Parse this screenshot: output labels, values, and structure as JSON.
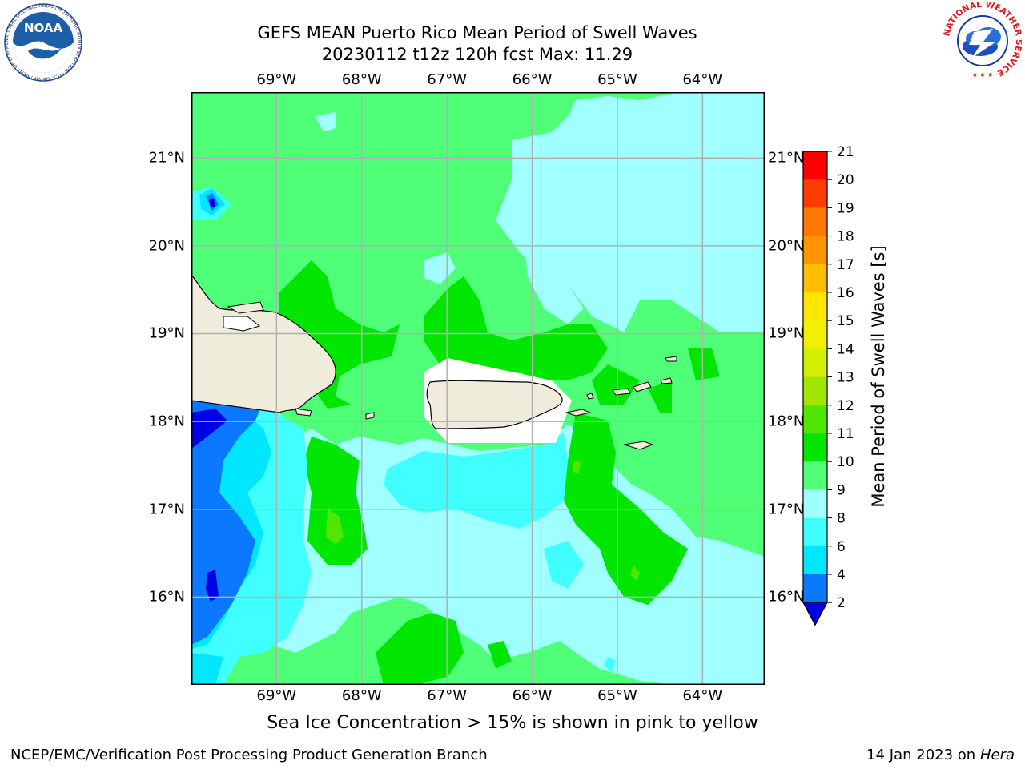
{
  "header": {
    "title_line1": "GEFS MEAN Puerto Rico Mean Period of Swell Waves",
    "title_line2": "20230112 t12z 120h fcst   Max: 11.29"
  },
  "logos": {
    "left": "NOAA",
    "left_ring": "NATIONAL OCEANIC AND ATMOSPHERIC ADMINISTRATION · U.S. DEPARTMENT OF COMMERCE",
    "right_ring": "NATIONAL WEATHER SERVICE"
  },
  "map": {
    "lon_labels": [
      "69°W",
      "68°W",
      "67°W",
      "66°W",
      "65°W",
      "64°W"
    ],
    "lat_labels": [
      "21°N",
      "20°N",
      "19°N",
      "18°N",
      "17°N",
      "16°N"
    ],
    "lon_values": [
      -69,
      -68,
      -67,
      -66,
      -65,
      -64
    ],
    "lat_values": [
      21,
      20,
      19,
      18,
      17,
      16
    ],
    "extent": {
      "lon": [
        -70,
        -63.27
      ],
      "lat": [
        15.0,
        21.75
      ]
    },
    "colors": {
      "land": "#efecdc",
      "grid": "#b0b0b0",
      "coast": "#000000"
    }
  },
  "colorbar": {
    "label": "Mean Period of Swell Waves [s]",
    "ticks": [
      "2",
      "4",
      "6",
      "8",
      "9",
      "10",
      "11",
      "12",
      "13",
      "14",
      "15",
      "16",
      "17",
      "18",
      "19",
      "20",
      "21"
    ],
    "under_color": "#0000e6",
    "colors": [
      "#0a78ff",
      "#00e6ff",
      "#40ffff",
      "#a0ffff",
      "#50ff78",
      "#00e600",
      "#50e600",
      "#a0e600",
      "#d2f000",
      "#f0f000",
      "#ffe600",
      "#ffbe00",
      "#ff9600",
      "#ff7800",
      "#ff3c00",
      "#ff0000"
    ]
  },
  "note": "Sea Ice Concentration > 15% is shown in pink to yellow",
  "footer": {
    "left": "NCEP/EMC/Verification Post Processing Product Generation Branch",
    "date": "14 Jan 2023 on ",
    "host": "Hera"
  }
}
